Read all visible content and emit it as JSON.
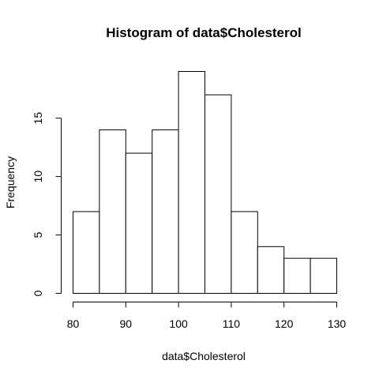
{
  "chart_data": {
    "type": "bar",
    "title": "Histogram of data$Cholesterol",
    "xlabel": "data$Cholesterol",
    "ylabel": "Frequency",
    "bins": [
      {
        "from": 80,
        "to": 85,
        "count": 7
      },
      {
        "from": 85,
        "to": 90,
        "count": 14
      },
      {
        "from": 90,
        "to": 95,
        "count": 12
      },
      {
        "from": 95,
        "to": 100,
        "count": 14
      },
      {
        "from": 100,
        "to": 105,
        "count": 19
      },
      {
        "from": 105,
        "to": 110,
        "count": 17
      },
      {
        "from": 110,
        "to": 115,
        "count": 7
      },
      {
        "from": 115,
        "to": 120,
        "count": 4
      },
      {
        "from": 120,
        "to": 125,
        "count": 3
      },
      {
        "from": 125,
        "to": 130,
        "count": 3
      }
    ],
    "xlim": [
      80,
      130
    ],
    "ylim": [
      0,
      19
    ],
    "x_ticks": [
      80,
      90,
      100,
      110,
      120,
      130
    ],
    "y_ticks": [
      0,
      5,
      10,
      15
    ],
    "grid": false,
    "colors": {
      "bar_fill": "#ffffff",
      "bar_stroke": "#000000"
    }
  }
}
